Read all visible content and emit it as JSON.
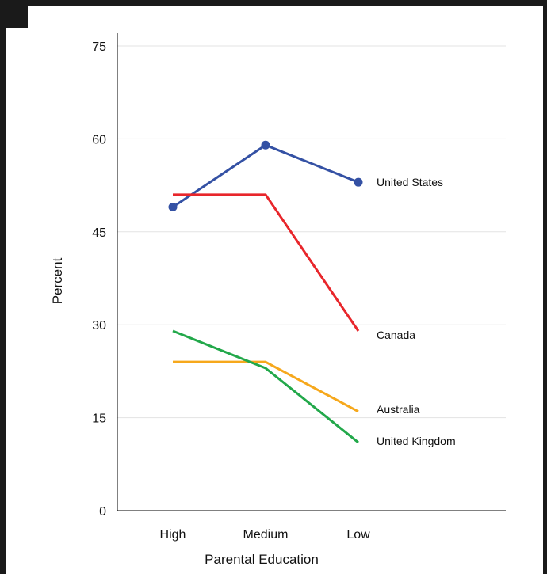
{
  "chart_data": {
    "type": "line",
    "title": "",
    "xlabel": "Parental Education",
    "ylabel": "Percent",
    "categories": [
      "High",
      "Medium",
      "Low"
    ],
    "ylim": [
      0,
      75
    ],
    "yticks": [
      0,
      15,
      30,
      45,
      60,
      75
    ],
    "grid": true,
    "legend": "direct labels at line ends (right)",
    "series": [
      {
        "name": "United States",
        "values": [
          49,
          59,
          53
        ],
        "color": "#3451a4",
        "markers": true
      },
      {
        "name": "Canada",
        "values": [
          51,
          51,
          29
        ],
        "color": "#e8262b",
        "markers": false
      },
      {
        "name": "Australia",
        "values": [
          24,
          24,
          16
        ],
        "color": "#f6a81c",
        "markers": false
      },
      {
        "name": "United Kingdom",
        "values": [
          29,
          23,
          11
        ],
        "color": "#22a84a",
        "markers": false
      }
    ]
  }
}
